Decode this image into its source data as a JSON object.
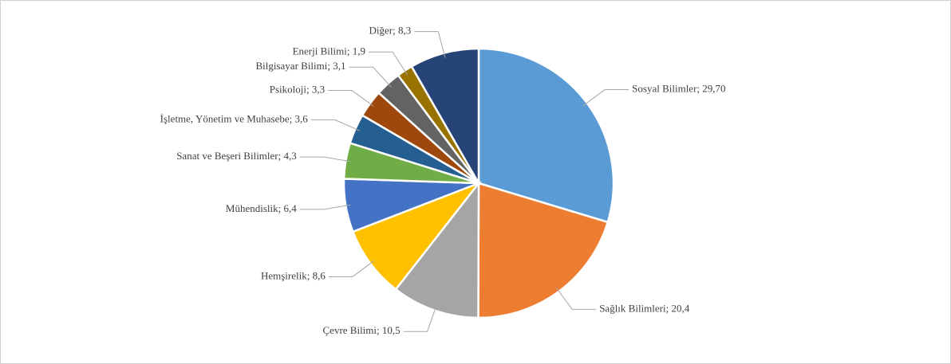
{
  "chart_data": {
    "type": "pie",
    "categories": [
      "Sosyal Bilimler",
      "Sağlık Bilimleri",
      "Çevre Bilimi",
      "Hemşirelik",
      "Mühendislik",
      "Sanat ve Beşeri Bilimler",
      "İşletme, Yönetim ve Muhasebe",
      "Psikoloji",
      "Bilgisayar Bilimi",
      "Enerji Bilimi",
      "Diğer"
    ],
    "values": [
      29.7,
      20.4,
      10.5,
      8.6,
      6.4,
      4.3,
      3.6,
      3.3,
      3.1,
      1.9,
      8.3
    ],
    "value_labels": [
      "29,70",
      "20,4",
      "10,5",
      "8,6",
      "6,4",
      "4,3",
      "3,6",
      "3,3",
      "3,1",
      "1,9",
      "8,3"
    ],
    "label_separator": "; ",
    "colors": [
      "#5b9bd5",
      "#ed7d31",
      "#a5a5a5",
      "#ffc000",
      "#4472c4",
      "#70ad47",
      "#255e91",
      "#9e480e",
      "#636363",
      "#997300",
      "#264478"
    ]
  }
}
